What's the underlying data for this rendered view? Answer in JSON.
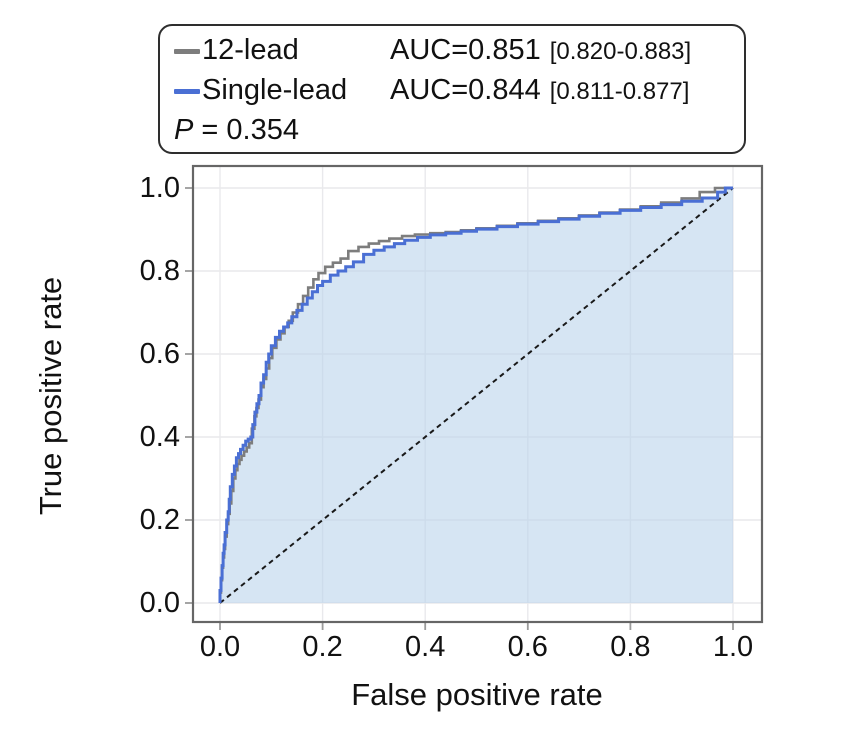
{
  "figure": {
    "background": "#ffffff"
  },
  "legend": {
    "rows": [
      {
        "label": "12-lead",
        "auc_text": "AUC=0.851",
        "ci_text": "[0.820-0.883]",
        "color": "#7d7d7d"
      },
      {
        "label": "Single-lead",
        "auc_text": "AUC=0.844",
        "ci_text": "[0.811-0.877]",
        "color": "#4a6fd4"
      }
    ],
    "p_symbol": "P",
    "p_rest": " = 0.354"
  },
  "chart_data": {
    "type": "line",
    "subtype": "roc-step-curves",
    "title": "",
    "xlabel": "False positive rate",
    "ylabel": "True positive rate",
    "xlim": [
      0,
      1
    ],
    "ylim": [
      0,
      1
    ],
    "xticks": [
      0.0,
      0.2,
      0.4,
      0.6,
      0.8,
      1.0
    ],
    "yticks": [
      0.0,
      0.2,
      0.4,
      0.6,
      0.8,
      1.0
    ],
    "xtick_labels": [
      "0.0",
      "0.2",
      "0.4",
      "0.6",
      "0.8",
      "1.0"
    ],
    "ytick_labels": [
      "0.0",
      "0.2",
      "0.4",
      "0.6",
      "0.8",
      "1.0"
    ],
    "grid": true,
    "legend_position": "top-left-outside",
    "diagonal_reference": true,
    "p_value": 0.354,
    "fill_under": "Single-lead",
    "colors": {
      "grid": "#e9e9ec",
      "panel_border": "#666666",
      "tick": "#9b9b9b",
      "diagonal": "#191919",
      "fill": "rgba(186,211,235,0.6)",
      "text": "#111111"
    },
    "series": [
      {
        "name": "12-lead",
        "auc": 0.851,
        "ci": "0.820-0.883",
        "color": "#7d7d7d",
        "width": 2.6,
        "x": [
          0,
          0.002,
          0.004,
          0.006,
          0.008,
          0.01,
          0.013,
          0.016,
          0.019,
          0.022,
          0.026,
          0.03,
          0.034,
          0.038,
          0.042,
          0.047,
          0.052,
          0.057,
          0.062,
          0.067,
          0.071,
          0.075,
          0.08,
          0.085,
          0.09,
          0.096,
          0.102,
          0.11,
          0.118,
          0.126,
          0.134,
          0.142,
          0.152,
          0.162,
          0.172,
          0.182,
          0.192,
          0.205,
          0.22,
          0.235,
          0.25,
          0.27,
          0.29,
          0.31,
          0.33,
          0.355,
          0.38,
          0.41,
          0.44,
          0.47,
          0.5,
          0.54,
          0.58,
          0.62,
          0.66,
          0.7,
          0.74,
          0.78,
          0.82,
          0.86,
          0.9,
          0.935,
          0.965,
          1
        ],
        "y": [
          0,
          0.025,
          0.055,
          0.085,
          0.11,
          0.13,
          0.16,
          0.19,
          0.215,
          0.24,
          0.27,
          0.3,
          0.32,
          0.335,
          0.345,
          0.355,
          0.365,
          0.375,
          0.385,
          0.42,
          0.45,
          0.47,
          0.49,
          0.52,
          0.54,
          0.565,
          0.59,
          0.615,
          0.635,
          0.65,
          0.665,
          0.68,
          0.7,
          0.72,
          0.74,
          0.76,
          0.78,
          0.795,
          0.81,
          0.82,
          0.83,
          0.848,
          0.858,
          0.866,
          0.872,
          0.878,
          0.884,
          0.888,
          0.891,
          0.894,
          0.898,
          0.903,
          0.909,
          0.915,
          0.921,
          0.927,
          0.934,
          0.941,
          0.948,
          0.956,
          0.965,
          0.975,
          0.99,
          1
        ]
      },
      {
        "name": "Single-lead",
        "auc": 0.844,
        "ci": "0.811-0.877",
        "color": "#4a6fd4",
        "width": 3,
        "x": [
          0,
          0.002,
          0.004,
          0.006,
          0.008,
          0.01,
          0.013,
          0.016,
          0.018,
          0.02,
          0.024,
          0.028,
          0.032,
          0.036,
          0.04,
          0.045,
          0.05,
          0.055,
          0.06,
          0.064,
          0.068,
          0.072,
          0.076,
          0.08,
          0.085,
          0.09,
          0.095,
          0.1,
          0.108,
          0.116,
          0.124,
          0.132,
          0.14,
          0.15,
          0.16,
          0.17,
          0.18,
          0.19,
          0.2,
          0.215,
          0.23,
          0.245,
          0.26,
          0.28,
          0.3,
          0.32,
          0.34,
          0.36,
          0.385,
          0.41,
          0.44,
          0.47,
          0.5,
          0.54,
          0.58,
          0.62,
          0.66,
          0.7,
          0.74,
          0.78,
          0.82,
          0.86,
          0.9,
          0.94,
          0.97,
          0.985,
          1
        ],
        "y": [
          0,
          0.03,
          0.06,
          0.09,
          0.12,
          0.14,
          0.17,
          0.2,
          0.22,
          0.25,
          0.28,
          0.31,
          0.33,
          0.35,
          0.36,
          0.37,
          0.38,
          0.39,
          0.395,
          0.4,
          0.43,
          0.46,
          0.48,
          0.5,
          0.53,
          0.55,
          0.58,
          0.6,
          0.62,
          0.64,
          0.655,
          0.665,
          0.675,
          0.69,
          0.705,
          0.72,
          0.735,
          0.75,
          0.765,
          0.775,
          0.79,
          0.8,
          0.81,
          0.822,
          0.84,
          0.85,
          0.858,
          0.866,
          0.874,
          0.881,
          0.887,
          0.891,
          0.896,
          0.901,
          0.907,
          0.913,
          0.919,
          0.925,
          0.932,
          0.939,
          0.946,
          0.953,
          0.96,
          0.968,
          0.976,
          0.99,
          1
        ]
      }
    ]
  }
}
